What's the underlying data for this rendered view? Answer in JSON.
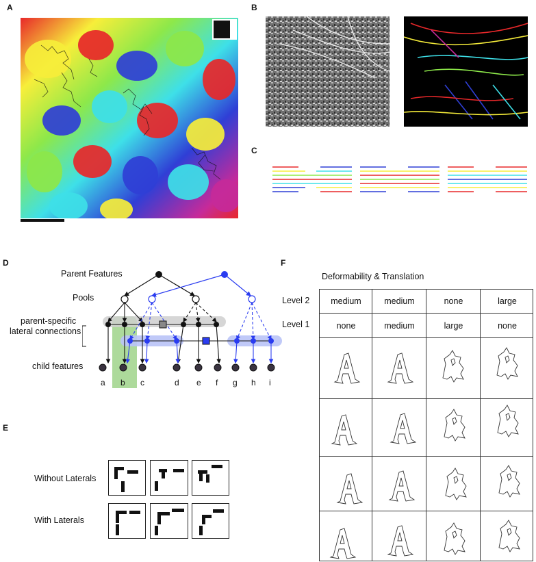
{
  "panels": {
    "A": "A",
    "B": "B",
    "C": "C",
    "D": "D",
    "E": "E",
    "F": "F"
  },
  "panel_d": {
    "parent_label": "Parent Features",
    "pools_label": "Pools",
    "lateral_label_1": "parent-specific",
    "lateral_label_2": "lateral connections",
    "child_label": "child features",
    "child_letters": [
      "a",
      "b",
      "c",
      "d",
      "e",
      "f",
      "g",
      "h",
      "i"
    ],
    "colors": {
      "blue": "#2a3cf0",
      "black": "#111111",
      "green": "#9fd48a",
      "grey": "#cfcfcf",
      "lightblue": "#b9c3f7"
    }
  },
  "panel_e": {
    "without_label": "Without Laterals",
    "with_label": "With Laterals"
  },
  "panel_f": {
    "title": "Deformability & Translation",
    "row_labels": [
      "Level 2",
      "Level 1"
    ],
    "level2": [
      "medium",
      "medium",
      "none",
      "large"
    ],
    "level1": [
      "none",
      "medium",
      "large",
      "none"
    ]
  },
  "panel_a": {
    "colormap": [
      "#e8282a",
      "#f7ee3a",
      "#8de84a",
      "#3ee0e8",
      "#2f3fd6",
      "#c62a9a"
    ]
  }
}
